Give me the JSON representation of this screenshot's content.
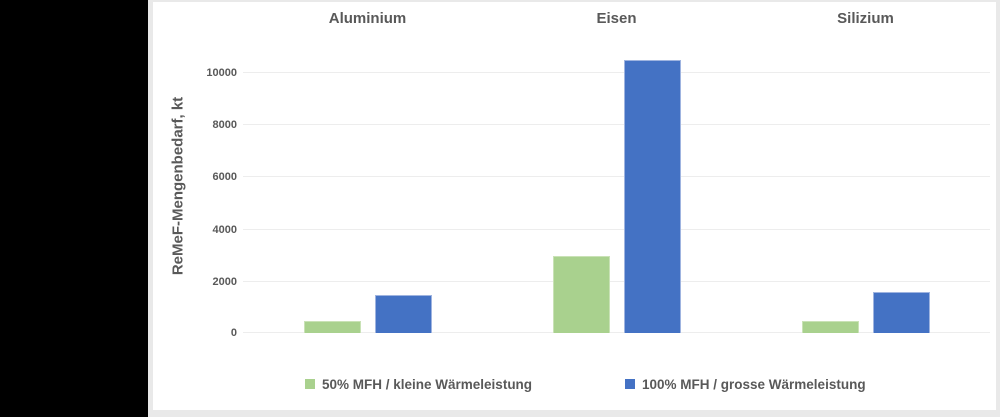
{
  "chart_data": {
    "type": "bar",
    "categories": [
      "Aluminium",
      "Eisen",
      "Silizium"
    ],
    "series": [
      {
        "name": "50% MFH / kleine Wärmeleistung",
        "color": "#a9d18e",
        "border_color": "#c9e2b6",
        "values": [
          450,
          2950,
          470
        ]
      },
      {
        "name": "100% MFH / grosse Wärmeleistung",
        "color": "#4472c4",
        "border_color": "#9fb4e0",
        "values": [
          1470,
          10450,
          1560
        ]
      }
    ],
    "ylabel": "ReMeF-Mengenbedarf, kt",
    "yticks": [
      0,
      2000,
      4000,
      6000,
      8000,
      10000
    ],
    "ylim": [
      0,
      11030
    ],
    "grid": true,
    "legend_position": "bottom",
    "colors": {
      "text": "#595959",
      "gridline": "#ededed",
      "panel_background": "#ffffff",
      "outer_background": "#000000",
      "panel_border": "#e9e9e9"
    }
  }
}
